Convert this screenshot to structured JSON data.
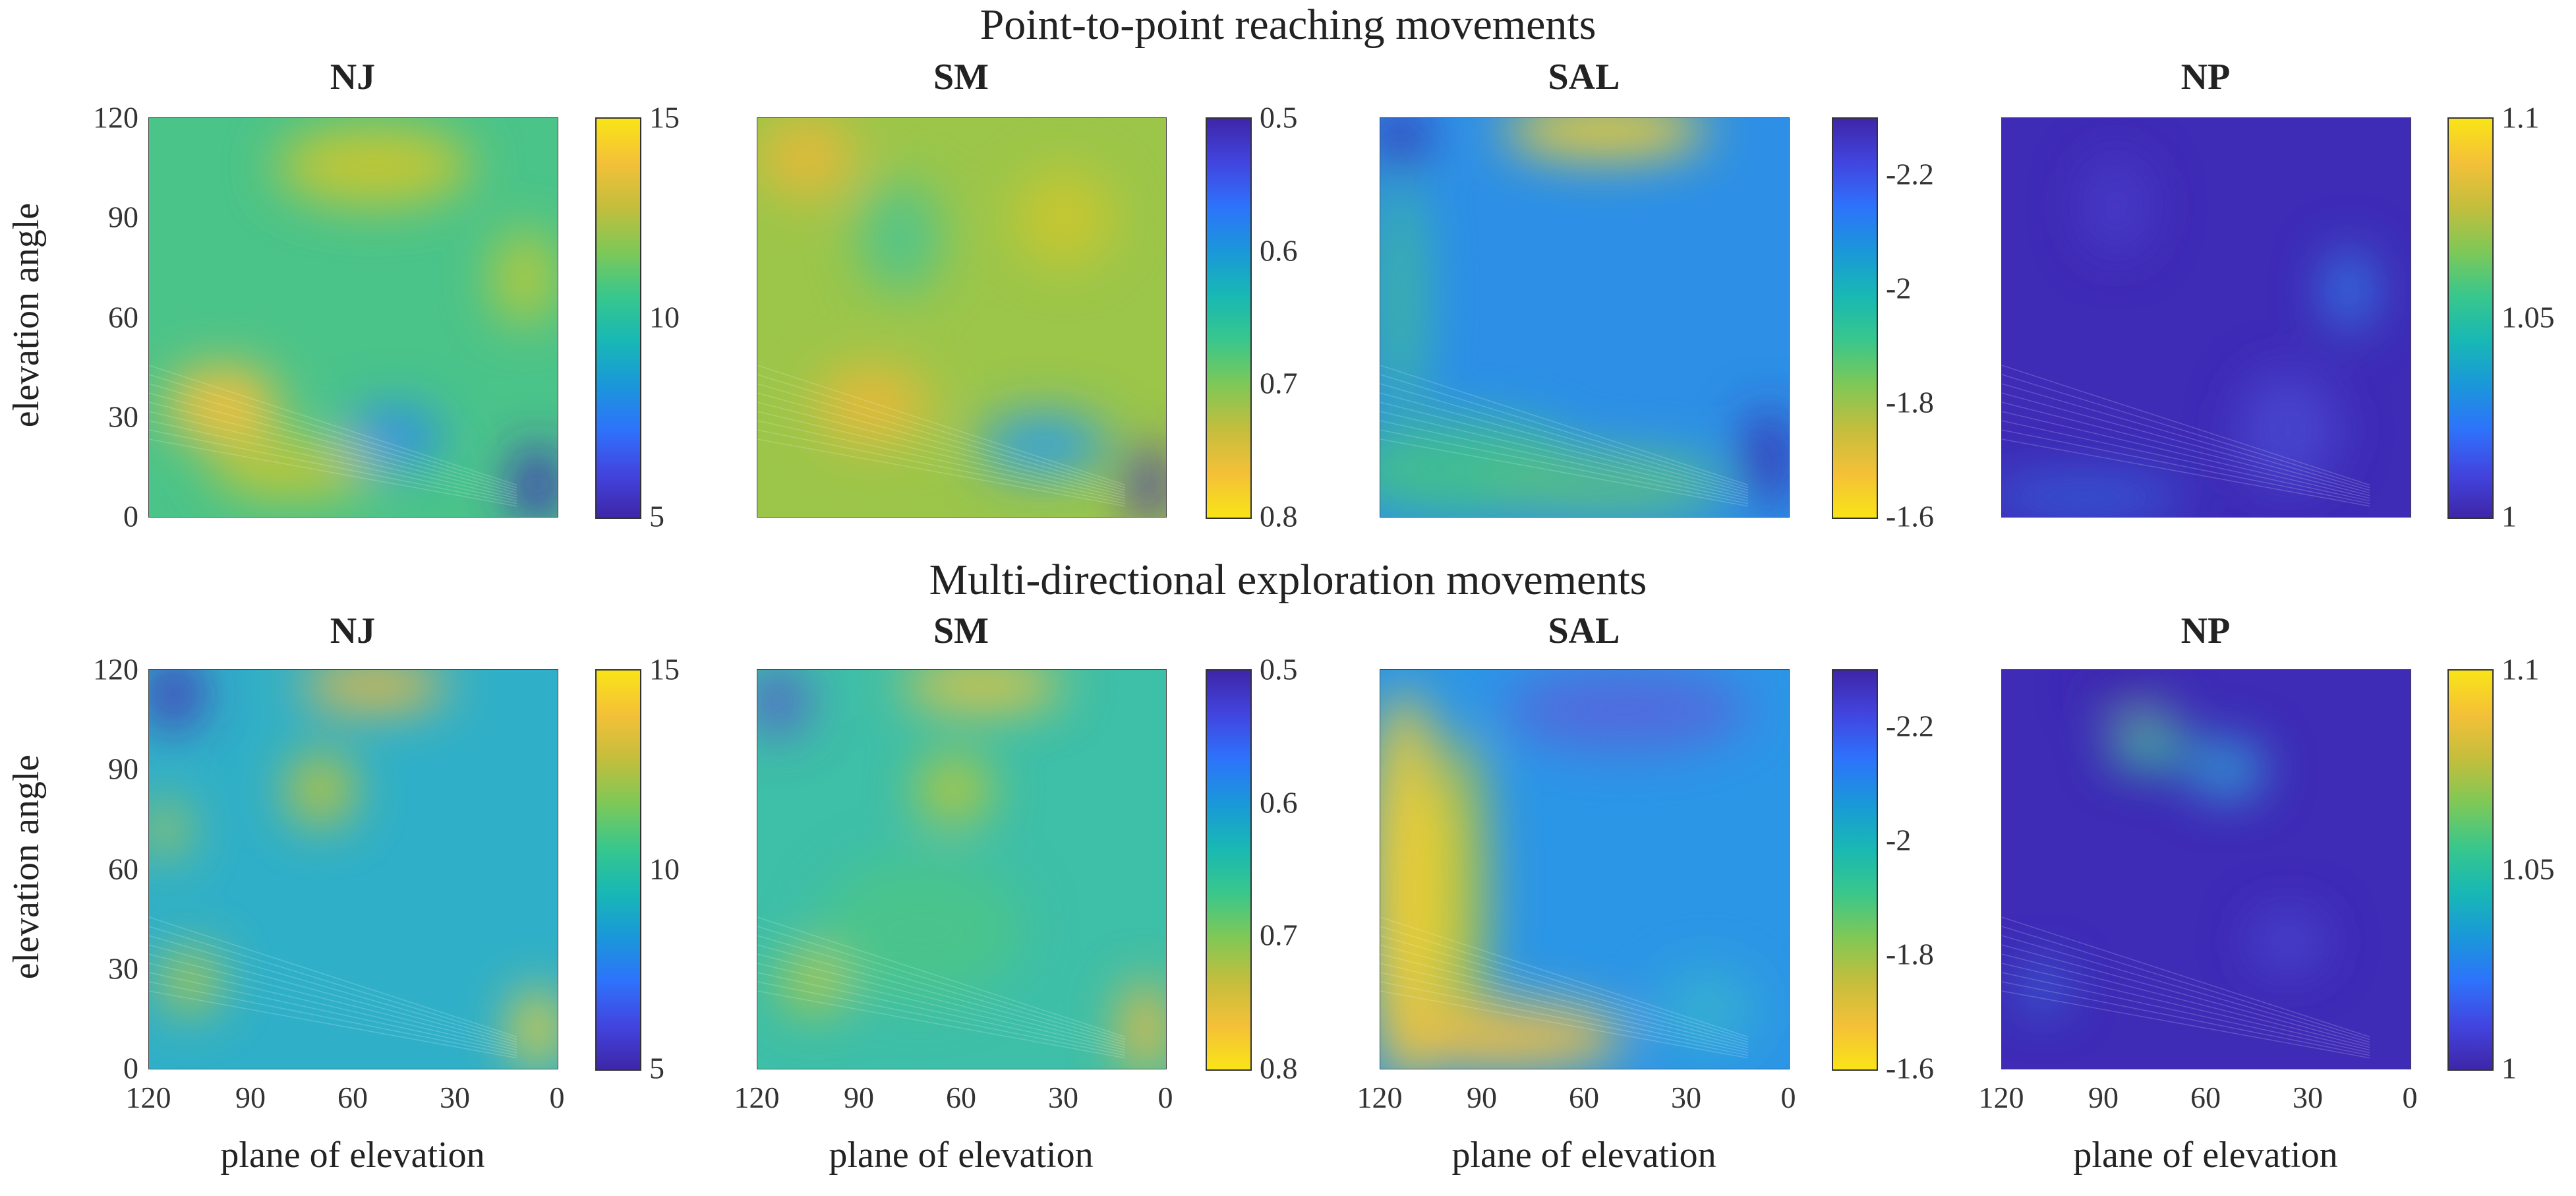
{
  "row_titles": [
    "Point-to-point reaching movements",
    "Multi-directional exploration movements"
  ],
  "axis_text": {
    "ylabel": "elevation angle",
    "xlabel": "plane of elevation"
  },
  "chart_data": {
    "type": "heatmap",
    "layout": "2x4 grid of contour maps",
    "y_ticks": [
      "120",
      "90",
      "60",
      "30",
      "0"
    ],
    "x_ticks": [
      "120",
      "90",
      "60",
      "30",
      "0"
    ],
    "ylim": [
      0,
      120
    ],
    "xlim": [
      120,
      0
    ],
    "rows": [
      {
        "title": "Point-to-point reaching movements",
        "panels": [
          {
            "title": "NJ",
            "colorbar": {
              "range": [
                5,
                15
              ],
              "reversed": false,
              "ticks": [
                "15",
                "10",
                "5"
              ]
            },
            "background": "#4bc48a",
            "blobs": [
              [
                0.18,
                0.72,
                0.14,
                0.1,
                "#f5c03a"
              ],
              [
                0.55,
                0.12,
                0.24,
                0.1,
                "#c9c730"
              ],
              [
                0.92,
                0.4,
                0.08,
                0.12,
                "#b8c93a"
              ],
              [
                0.6,
                0.8,
                0.12,
                0.08,
                "#2a8ee8"
              ],
              [
                0.95,
                0.92,
                0.06,
                0.1,
                "#4228b8"
              ],
              [
                0.35,
                0.88,
                0.2,
                0.07,
                "#c9c730"
              ]
            ]
          },
          {
            "title": "SM",
            "colorbar": {
              "range": [
                0.5,
                0.8
              ],
              "reversed": true,
              "ticks": [
                "0.8",
                "0.7",
                "0.6",
                "0.5"
              ]
            },
            "background": "#9cc64a",
            "blobs": [
              [
                0.28,
                0.72,
                0.14,
                0.1,
                "#e6b83a"
              ],
              [
                0.12,
                0.1,
                0.12,
                0.1,
                "#e6b83a"
              ],
              [
                0.35,
                0.3,
                0.1,
                0.14,
                "#4fc48c"
              ],
              [
                0.7,
                0.82,
                0.16,
                0.08,
                "#2a9ee4"
              ],
              [
                0.96,
                0.92,
                0.05,
                0.1,
                "#4a2ab8"
              ],
              [
                0.75,
                0.25,
                0.12,
                0.12,
                "#c9c730"
              ]
            ]
          },
          {
            "title": "SAL",
            "colorbar": {
              "range": [
                -2.3,
                -1.6
              ],
              "reversed": true,
              "ticks": [
                "-1.6",
                "-1.8",
                "-2",
                "-2.2"
              ]
            },
            "background": "#2d90e6",
            "blobs": [
              [
                0.55,
                0.03,
                0.25,
                0.07,
                "#f7d02a"
              ],
              [
                0.05,
                0.05,
                0.06,
                0.08,
                "#3a2db0"
              ],
              [
                0.2,
                0.88,
                0.3,
                0.12,
                "#42c08c"
              ],
              [
                0.55,
                0.92,
                0.3,
                0.08,
                "#58c084"
              ],
              [
                0.05,
                0.45,
                0.05,
                0.3,
                "#3fbf90"
              ],
              [
                0.95,
                0.85,
                0.06,
                0.12,
                "#3a2db0"
              ]
            ]
          },
          {
            "title": "NP",
            "colorbar": {
              "range": [
                1,
                1.1
              ],
              "reversed": false,
              "ticks": [
                "1.1",
                "1.05",
                "1"
              ]
            },
            "background": "#3e2bb6",
            "blobs": [
              [
                0.28,
                0.22,
                0.08,
                0.12,
                "#4a3cc8"
              ],
              [
                0.85,
                0.43,
                0.06,
                0.1,
                "#2f7ee8"
              ],
              [
                0.7,
                0.78,
                0.12,
                0.14,
                "#4a46d0"
              ],
              [
                0.2,
                0.95,
                0.25,
                0.04,
                "#2f6fe4"
              ]
            ]
          }
        ]
      },
      {
        "title": "Multi-directional exploration movements",
        "panels": [
          {
            "title": "NJ",
            "colorbar": {
              "range": [
                5,
                15
              ],
              "reversed": false,
              "ticks": [
                "15",
                "10",
                "5"
              ]
            },
            "background": "#30b0c8",
            "blobs": [
              [
                0.55,
                0.04,
                0.18,
                0.06,
                "#f2b83a"
              ],
              [
                0.06,
                0.06,
                0.07,
                0.09,
                "#4830b8"
              ],
              [
                0.42,
                0.3,
                0.08,
                0.09,
                "#c7c52e"
              ],
              [
                0.95,
                0.9,
                0.06,
                0.1,
                "#f6d02c"
              ],
              [
                0.1,
                0.78,
                0.07,
                0.08,
                "#b9c83a"
              ],
              [
                0.04,
                0.4,
                0.05,
                0.07,
                "#b9c83a"
              ]
            ]
          },
          {
            "title": "SM",
            "colorbar": {
              "range": [
                0.5,
                0.8
              ],
              "reversed": true,
              "ticks": [
                "0.8",
                "0.7",
                "0.6",
                "0.5"
              ]
            },
            "background": "#3ebfa8",
            "blobs": [
              [
                0.55,
                0.04,
                0.2,
                0.06,
                "#f0c43a"
              ],
              [
                0.48,
                0.3,
                0.09,
                0.09,
                "#b7c838"
              ],
              [
                0.95,
                0.9,
                0.06,
                0.12,
                "#f2b83a"
              ],
              [
                0.14,
                0.78,
                0.08,
                0.08,
                "#b7c838"
              ],
              [
                0.05,
                0.08,
                0.07,
                0.08,
                "#5a54d0"
              ],
              [
                0.4,
                0.65,
                0.25,
                0.18,
                "#4cc48a"
              ]
            ]
          },
          {
            "title": "SAL",
            "colorbar": {
              "range": [
                -2.3,
                -1.6
              ],
              "reversed": true,
              "ticks": [
                "-1.6",
                "-1.8",
                "-2",
                "-2.2"
              ]
            },
            "background": "#2c96e6",
            "blobs": [
              [
                0.06,
                0.55,
                0.09,
                0.5,
                "#f7d02a"
              ],
              [
                0.2,
                0.55,
                0.06,
                0.4,
                "#b9c83a"
              ],
              [
                0.3,
                0.92,
                0.3,
                0.08,
                "#f2c040"
              ],
              [
                0.6,
                0.1,
                0.3,
                0.1,
                "#5268dc"
              ],
              [
                0.8,
                0.85,
                0.12,
                0.1,
                "#35b0d0"
              ]
            ]
          },
          {
            "title": "NP",
            "colorbar": {
              "range": [
                1,
                1.1
              ],
              "reversed": false,
              "ticks": [
                "1.1",
                "1.05",
                "1"
              ]
            },
            "background": "#3e2bb6",
            "blobs": [
              [
                0.35,
                0.16,
                0.07,
                0.04,
                "#f2c838"
              ],
              [
                0.36,
                0.19,
                0.1,
                0.06,
                "#2fc0a0"
              ],
              [
                0.3,
                0.04,
                0.09,
                0.05,
                "#3a1ea8"
              ],
              [
                0.55,
                0.25,
                0.09,
                0.07,
                "#2fa8d8"
              ],
              [
                0.7,
                0.68,
                0.09,
                0.07,
                "#4a46d0"
              ],
              [
                0.1,
                0.8,
                0.05,
                0.05,
                "#2f80e8"
              ]
            ]
          }
        ]
      }
    ]
  }
}
